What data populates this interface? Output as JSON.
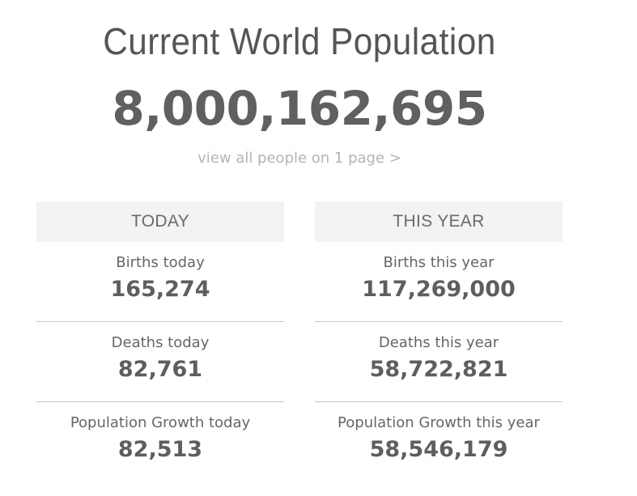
{
  "header": {
    "title": "Current World Population",
    "population": "8,000,162,695",
    "view_link": "view all people on 1 page >"
  },
  "today": {
    "heading": "TODAY",
    "stats": [
      {
        "label": "Births today",
        "value": "165,274"
      },
      {
        "label": "Deaths today",
        "value": "82,761"
      },
      {
        "label": "Population Growth today",
        "value": "82,513"
      }
    ]
  },
  "this_year": {
    "heading": "THIS YEAR",
    "stats": [
      {
        "label": "Births this year",
        "value": "117,269,000"
      },
      {
        "label": "Deaths this year",
        "value": "58,722,821"
      },
      {
        "label": "Population Growth this year",
        "value": "58,546,179"
      }
    ]
  },
  "colors": {
    "text": "#555555",
    "muted_link": "#b4b4b4",
    "header_bg": "#f3f3f3",
    "divider": "#c8c8c8"
  }
}
